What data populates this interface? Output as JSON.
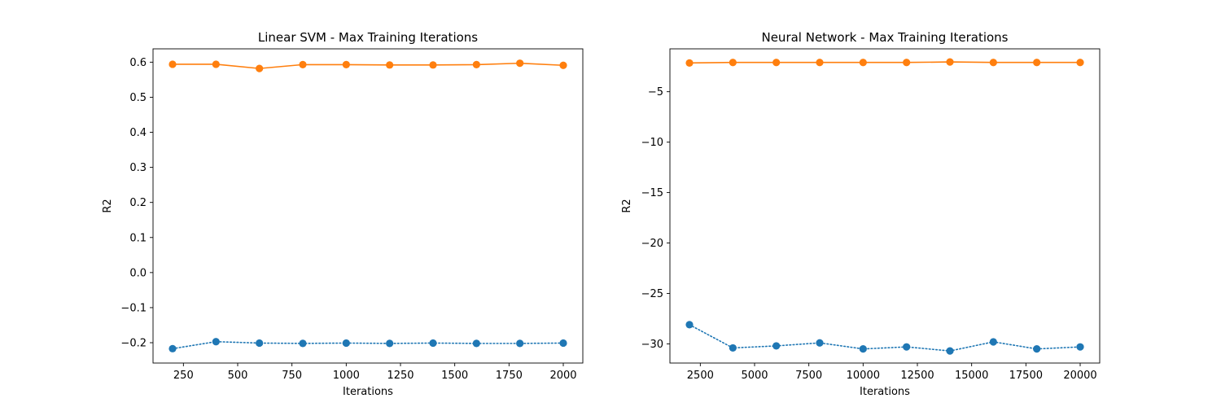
{
  "chart_data": [
    {
      "type": "line",
      "title": "Linear SVM - Max Training Iterations",
      "xlabel": "Iterations",
      "ylabel": "R2",
      "xlim": [
        110,
        2090
      ],
      "ylim": [
        -0.258,
        0.638
      ],
      "xticks": [
        250,
        500,
        750,
        1000,
        1250,
        1500,
        1750,
        2000
      ],
      "yticks": [
        -0.2,
        -0.1,
        0.0,
        0.1,
        0.2,
        0.3,
        0.4,
        0.5,
        0.6
      ],
      "ytick_labels": [
        "−0.2",
        "−0.1",
        "0.0",
        "0.1",
        "0.2",
        "0.3",
        "0.4",
        "0.5",
        "0.6"
      ],
      "grid": false,
      "x": [
        200,
        400,
        600,
        800,
        1000,
        1200,
        1400,
        1600,
        1800,
        2000
      ],
      "series": [
        {
          "color": "#ff7f0e",
          "linestyle": "solid",
          "marker": "circle",
          "values": [
            0.594,
            0.594,
            0.582,
            0.593,
            0.593,
            0.592,
            0.592,
            0.593,
            0.597,
            0.591
          ]
        },
        {
          "color": "#1f77b4",
          "linestyle": "dotted",
          "marker": "circle",
          "values": [
            -0.217,
            -0.197,
            -0.201,
            -0.202,
            -0.201,
            -0.202,
            -0.201,
            -0.202,
            -0.202,
            -0.201
          ]
        }
      ]
    },
    {
      "type": "line",
      "title": "Neural Network - Max Training Iterations",
      "xlabel": "Iterations",
      "ylabel": "R2",
      "xlim": [
        1100,
        20900
      ],
      "ylim": [
        -31.9,
        -0.75
      ],
      "xticks": [
        2500,
        5000,
        7500,
        10000,
        12500,
        15000,
        17500,
        20000
      ],
      "yticks": [
        -30,
        -25,
        -20,
        -15,
        -10,
        -5
      ],
      "ytick_labels": [
        "−30",
        "−25",
        "−20",
        "−15",
        "−10",
        "−5"
      ],
      "grid": false,
      "x": [
        2000,
        4000,
        6000,
        8000,
        10000,
        12000,
        14000,
        16000,
        18000,
        20000
      ],
      "series": [
        {
          "color": "#ff7f0e",
          "linestyle": "solid",
          "marker": "circle",
          "values": [
            -2.15,
            -2.1,
            -2.1,
            -2.1,
            -2.1,
            -2.1,
            -2.05,
            -2.1,
            -2.1,
            -2.1
          ]
        },
        {
          "color": "#1f77b4",
          "linestyle": "dotted",
          "marker": "circle",
          "values": [
            -28.1,
            -30.4,
            -30.2,
            -29.9,
            -30.5,
            -30.3,
            -30.7,
            -29.8,
            -30.5,
            -30.3
          ]
        }
      ]
    }
  ]
}
